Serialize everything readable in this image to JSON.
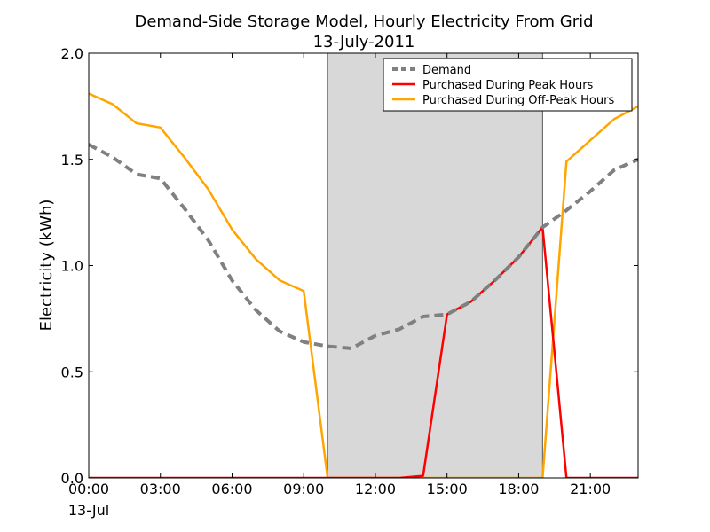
{
  "chart_data": {
    "type": "line",
    "title": "Demand-Side Storage Model, Hourly Electricity From Grid",
    "subtitle": "13-July-2011",
    "xlabel": "",
    "ylabel": "Electricity (kWh)",
    "x_date_label": "13-Jul",
    "x": [
      "00:00",
      "01:00",
      "02:00",
      "03:00",
      "04:00",
      "05:00",
      "06:00",
      "07:00",
      "08:00",
      "09:00",
      "10:00",
      "11:00",
      "12:00",
      "13:00",
      "14:00",
      "15:00",
      "16:00",
      "17:00",
      "18:00",
      "19:00",
      "20:00",
      "21:00",
      "22:00",
      "23:00"
    ],
    "xticks": [
      "00:00",
      "03:00",
      "06:00",
      "09:00",
      "12:00",
      "15:00",
      "18:00",
      "21:00"
    ],
    "xlim": [
      "00:00",
      "23:00"
    ],
    "ylim": [
      0,
      2.0
    ],
    "yticks": [
      "0.0",
      "0.5",
      "1.0",
      "1.5",
      "2.0"
    ],
    "shaded_region": {
      "from": "10:00",
      "to": "19:00",
      "color": "#d8d8d8"
    },
    "legend_position": "top-right",
    "grid": false,
    "series": [
      {
        "name": "Demand",
        "color": "#808080",
        "style": "dashed",
        "values": [
          1.57,
          1.51,
          1.43,
          1.41,
          1.27,
          1.12,
          0.93,
          0.79,
          0.69,
          0.64,
          0.62,
          0.61,
          0.67,
          0.7,
          0.76,
          0.77,
          0.83,
          0.93,
          1.04,
          1.18,
          1.26,
          1.35,
          1.45,
          1.5
        ]
      },
      {
        "name": "Purchased During Peak Hours",
        "color": "#ff0000",
        "style": "solid",
        "values": [
          0,
          0,
          0,
          0,
          0,
          0,
          0,
          0,
          0,
          0,
          0,
          0,
          0,
          0,
          0.01,
          0.77,
          0.83,
          0.93,
          1.04,
          1.18,
          0,
          0,
          0,
          0
        ]
      },
      {
        "name": "Purchased During Off-Peak Hours",
        "color": "#ffa500",
        "style": "solid",
        "values": [
          1.81,
          1.76,
          1.67,
          1.65,
          1.51,
          1.36,
          1.17,
          1.03,
          0.93,
          0.88,
          0,
          0,
          0,
          0,
          0,
          0,
          0,
          0,
          0,
          0,
          1.49,
          1.59,
          1.69,
          1.75
        ]
      }
    ]
  }
}
